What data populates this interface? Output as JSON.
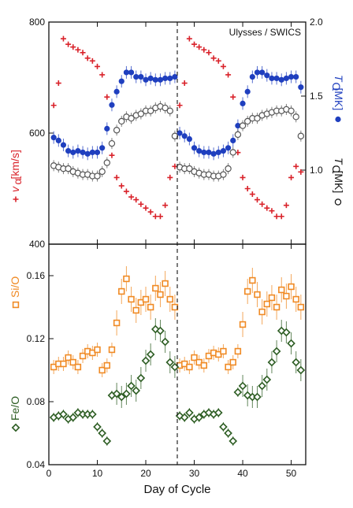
{
  "colors": {
    "velocity": "#d9222a",
    "t_oxygen": "#1f3fbf",
    "t_carbon": "#555555",
    "si_o": "#f08a24",
    "fe_o": "#2e5e24",
    "axis": "#111111"
  },
  "chart_data": [
    {
      "type": "scatter",
      "panel": "top",
      "annotation": "Ulysses / SWICS",
      "xlim": [
        0,
        53
      ],
      "x_ticks": [
        "0",
        "10",
        "20",
        "30",
        "40",
        "50"
      ],
      "left_axis": {
        "ylim": [
          400,
          800
        ],
        "ticks": [
          "400",
          "600",
          "800"
        ]
      },
      "right_axis": {
        "ylim": [
          0.5,
          2.0
        ],
        "ticks": [
          "1.0",
          "1.5",
          "2.0"
        ]
      },
      "marked_day": 26.5,
      "series": [
        {
          "name": "v_α [km/s]",
          "label_sub": "α",
          "label_main": "v",
          "label_unit": "[km/s]",
          "axis": "left",
          "marker": "plus",
          "color": "velocity",
          "x": [
            1,
            2,
            3,
            4,
            5,
            6,
            7,
            8,
            9,
            10,
            11,
            12,
            13,
            14,
            15,
            16,
            17,
            18,
            19,
            20,
            21,
            22,
            23,
            24,
            25,
            26,
            27,
            28,
            29,
            30,
            31,
            32,
            33,
            34,
            35,
            36,
            37,
            38,
            39,
            40,
            41,
            42,
            43,
            44,
            45,
            46,
            47,
            48,
            49,
            50,
            51,
            52
          ],
          "y": [
            650,
            690,
            770,
            760,
            755,
            750,
            745,
            735,
            730,
            720,
            705,
            665,
            560,
            520,
            505,
            495,
            485,
            480,
            472,
            465,
            458,
            450,
            450,
            470,
            520,
            540,
            650,
            690,
            770,
            760,
            755,
            750,
            745,
            735,
            730,
            720,
            705,
            665,
            565,
            520,
            500,
            490,
            480,
            472,
            465,
            460,
            450,
            450,
            470,
            520,
            540,
            530
          ]
        },
        {
          "name": "T_O [MK]",
          "label_main": "T",
          "label_sub": "O",
          "label_unit": "[MK]",
          "axis": "right",
          "marker": "filled-circle",
          "color": "t_oxygen",
          "x": [
            1,
            2,
            3,
            4,
            5,
            6,
            7,
            8,
            9,
            10,
            11,
            12,
            13,
            14,
            15,
            16,
            17,
            18,
            19,
            20,
            21,
            22,
            23,
            24,
            25,
            26,
            27,
            28,
            29,
            30,
            31,
            32,
            33,
            34,
            35,
            36,
            37,
            38,
            39,
            40,
            41,
            42,
            43,
            44,
            45,
            46,
            47,
            48,
            49,
            50,
            51,
            52
          ],
          "y": [
            1.22,
            1.2,
            1.17,
            1.13,
            1.12,
            1.13,
            1.12,
            1.11,
            1.12,
            1.12,
            1.15,
            1.28,
            1.44,
            1.53,
            1.6,
            1.66,
            1.66,
            1.63,
            1.63,
            1.61,
            1.62,
            1.61,
            1.61,
            1.62,
            1.62,
            1.63,
            1.25,
            1.23,
            1.21,
            1.15,
            1.13,
            1.12,
            1.12,
            1.11,
            1.12,
            1.13,
            1.15,
            1.2,
            1.3,
            1.45,
            1.53,
            1.63,
            1.66,
            1.66,
            1.64,
            1.62,
            1.62,
            1.61,
            1.62,
            1.63,
            1.63,
            1.56
          ]
        },
        {
          "name": "T_C [MK]",
          "label_main": "T",
          "label_sub": "C",
          "label_unit": "[MK]",
          "axis": "right",
          "marker": "open-circle",
          "color": "t_carbon",
          "x": [
            1,
            2,
            3,
            4,
            5,
            6,
            7,
            8,
            9,
            10,
            11,
            12,
            13,
            14,
            15,
            16,
            17,
            18,
            19,
            20,
            21,
            22,
            23,
            24,
            25,
            26,
            27,
            28,
            29,
            30,
            31,
            32,
            33,
            34,
            35,
            36,
            37,
            38,
            39,
            40,
            41,
            42,
            43,
            44,
            45,
            46,
            47,
            48,
            49,
            50,
            51,
            52
          ],
          "y": [
            1.03,
            1.02,
            1.01,
            1.01,
            0.99,
            0.98,
            0.97,
            0.97,
            0.96,
            0.96,
            0.99,
            1.05,
            1.18,
            1.27,
            1.33,
            1.36,
            1.35,
            1.37,
            1.38,
            1.4,
            1.4,
            1.42,
            1.43,
            1.42,
            1.4,
            1.23,
            1.02,
            1.01,
            1.01,
            0.99,
            0.98,
            0.97,
            0.97,
            0.96,
            0.96,
            0.97,
            1.01,
            1.12,
            1.24,
            1.3,
            1.33,
            1.35,
            1.35,
            1.37,
            1.38,
            1.39,
            1.4,
            1.4,
            1.41,
            1.4,
            1.36,
            1.23
          ]
        }
      ]
    },
    {
      "type": "scatter",
      "panel": "bottom",
      "xlim": [
        0,
        53
      ],
      "ylim": [
        0.04,
        0.18
      ],
      "x_ticks": [
        "0",
        "10",
        "20",
        "30",
        "40",
        "50"
      ],
      "y_ticks": [
        "0.04",
        "0.08",
        "0.12",
        "0.16"
      ],
      "xlabel": "Day of Cycle",
      "marked_day": 26.5,
      "series": [
        {
          "name": "Si/O",
          "marker": "open-square",
          "color": "si_o",
          "x": [
            1,
            2,
            3,
            4,
            5,
            6,
            7,
            8,
            9,
            10,
            11,
            12,
            13,
            14,
            15,
            16,
            17,
            18,
            19,
            20,
            21,
            22,
            23,
            24,
            25,
            26,
            27,
            28,
            29,
            30,
            31,
            32,
            33,
            34,
            35,
            36,
            37,
            38,
            39,
            40,
            41,
            42,
            43,
            44,
            45,
            46,
            47,
            48,
            49,
            50,
            51,
            52
          ],
          "y": [
            0.102,
            0.104,
            0.104,
            0.108,
            0.105,
            0.102,
            0.109,
            0.112,
            0.111,
            0.113,
            0.1,
            0.103,
            0.113,
            0.13,
            0.15,
            0.158,
            0.145,
            0.138,
            0.143,
            0.145,
            0.14,
            0.152,
            0.148,
            0.155,
            0.145,
            0.14,
            0.103,
            0.104,
            0.102,
            0.108,
            0.105,
            0.103,
            0.109,
            0.111,
            0.11,
            0.112,
            0.102,
            0.105,
            0.112,
            0.129,
            0.15,
            0.157,
            0.148,
            0.137,
            0.142,
            0.146,
            0.14,
            0.151,
            0.147,
            0.153,
            0.145,
            0.14
          ]
        },
        {
          "name": "Fe/O",
          "marker": "open-diamond",
          "color": "fe_o",
          "x": [
            1,
            2,
            3,
            4,
            5,
            6,
            7,
            8,
            9,
            10,
            11,
            12,
            13,
            14,
            15,
            16,
            17,
            18,
            19,
            20,
            21,
            22,
            23,
            24,
            25,
            26,
            27,
            28,
            29,
            30,
            31,
            32,
            33,
            34,
            35,
            36,
            37,
            38,
            39,
            40,
            41,
            42,
            43,
            44,
            45,
            46,
            47,
            48,
            49,
            50,
            51,
            52
          ],
          "y": [
            0.07,
            0.071,
            0.072,
            0.069,
            0.07,
            0.073,
            0.072,
            0.072,
            0.072,
            0.064,
            0.06,
            0.055,
            0.084,
            0.085,
            0.083,
            0.085,
            0.09,
            0.087,
            0.095,
            0.106,
            0.11,
            0.126,
            0.125,
            0.118,
            0.105,
            0.102,
            0.071,
            0.07,
            0.073,
            0.069,
            0.07,
            0.072,
            0.073,
            0.072,
            0.073,
            0.064,
            0.06,
            0.055,
            0.086,
            0.09,
            0.084,
            0.083,
            0.083,
            0.09,
            0.094,
            0.105,
            0.112,
            0.125,
            0.124,
            0.117,
            0.105,
            0.1
          ]
        }
      ]
    }
  ]
}
